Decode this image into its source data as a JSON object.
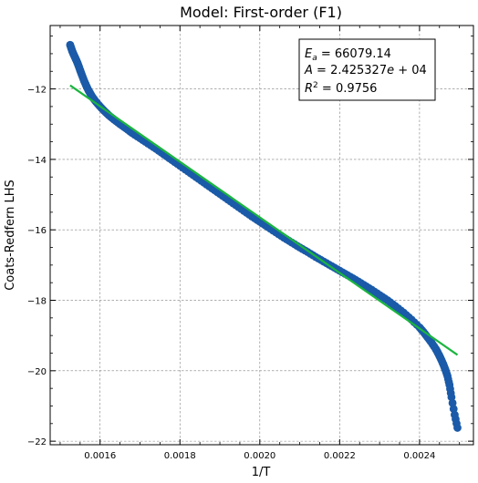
{
  "chart_data": {
    "type": "scatter",
    "title": "Model: First-order (F1)",
    "xlabel": "1/T",
    "ylabel": "Coats-Redfern LHS",
    "xlim": [
      0.001475,
      0.002535
    ],
    "ylim": [
      -22.1,
      -10.2
    ],
    "x_major_ticks": [
      0.0016,
      0.0018,
      0.002,
      0.0022,
      0.0024
    ],
    "x_tick_labels": [
      "0.0016",
      "0.0018",
      "0.0020",
      "0.0022",
      "0.0024"
    ],
    "y_major_ticks": [
      -22,
      -20,
      -18,
      -16,
      -14,
      -12
    ],
    "y_tick_labels": [
      "−22",
      "−20",
      "−18",
      "−16",
      "−14",
      "−12"
    ],
    "grid": true,
    "series": [
      {
        "kind": "scatter",
        "color": "#1a5aa8",
        "points": [
          [
            0.001525,
            -10.75
          ],
          [
            0.001528,
            -10.85
          ],
          [
            0.001531,
            -10.95
          ],
          [
            0.001535,
            -11.05
          ],
          [
            0.001539,
            -11.15
          ],
          [
            0.001543,
            -11.25
          ],
          [
            0.001547,
            -11.37
          ],
          [
            0.001551,
            -11.5
          ],
          [
            0.001555,
            -11.62
          ],
          [
            0.00156,
            -11.77
          ],
          [
            0.001565,
            -11.9
          ],
          [
            0.00157,
            -12.02
          ],
          [
            0.001575,
            -12.12
          ],
          [
            0.001582,
            -12.25
          ],
          [
            0.00159,
            -12.37
          ],
          [
            0.0016,
            -12.5
          ],
          [
            0.00161,
            -12.62
          ],
          [
            0.001622,
            -12.75
          ],
          [
            0.001635,
            -12.87
          ],
          [
            0.00165,
            -13.0
          ],
          [
            0.001665,
            -13.12
          ],
          [
            0.00168,
            -13.25
          ],
          [
            0.0017,
            -13.4
          ],
          [
            0.00172,
            -13.55
          ],
          [
            0.00174,
            -13.7
          ],
          [
            0.00176,
            -13.86
          ],
          [
            0.00178,
            -14.02
          ],
          [
            0.0018,
            -14.18
          ],
          [
            0.00182,
            -14.34
          ],
          [
            0.00184,
            -14.5
          ],
          [
            0.00186,
            -14.66
          ],
          [
            0.00188,
            -14.82
          ],
          [
            0.0019,
            -14.98
          ],
          [
            0.00192,
            -15.14
          ],
          [
            0.00194,
            -15.3
          ],
          [
            0.00196,
            -15.46
          ],
          [
            0.00198,
            -15.62
          ],
          [
            0.002,
            -15.77
          ],
          [
            0.00202,
            -15.92
          ],
          [
            0.00204,
            -16.07
          ],
          [
            0.00206,
            -16.22
          ],
          [
            0.00208,
            -16.36
          ],
          [
            0.0021,
            -16.5
          ],
          [
            0.00212,
            -16.63
          ],
          [
            0.00214,
            -16.77
          ],
          [
            0.00216,
            -16.9
          ],
          [
            0.00218,
            -17.03
          ],
          [
            0.0022,
            -17.16
          ],
          [
            0.00222,
            -17.29
          ],
          [
            0.00224,
            -17.42
          ],
          [
            0.00226,
            -17.56
          ],
          [
            0.00228,
            -17.7
          ],
          [
            0.0023,
            -17.85
          ],
          [
            0.00232,
            -18.0
          ],
          [
            0.00234,
            -18.17
          ],
          [
            0.00236,
            -18.35
          ],
          [
            0.00238,
            -18.55
          ],
          [
            0.0024,
            -18.77
          ],
          [
            0.00241,
            -18.9
          ],
          [
            0.00242,
            -19.05
          ],
          [
            0.00243,
            -19.2
          ],
          [
            0.00244,
            -19.37
          ],
          [
            0.002445,
            -19.47
          ],
          [
            0.00245,
            -19.58
          ],
          [
            0.002455,
            -19.7
          ],
          [
            0.00246,
            -19.83
          ],
          [
            0.002465,
            -19.98
          ],
          [
            0.00247,
            -20.15
          ],
          [
            0.002475,
            -20.4
          ],
          [
            0.00248,
            -20.75
          ],
          [
            0.002488,
            -21.25
          ],
          [
            0.002495,
            -21.62
          ]
        ]
      },
      {
        "kind": "line",
        "color": "#1bb53f",
        "points": [
          [
            0.001525,
            -11.9
          ],
          [
            0.002495,
            -19.55
          ]
        ]
      }
    ],
    "annotation": {
      "lines": [
        "E_a = 66079.14",
        "A = 2.425327e+04",
        "R^2 = 0.9756"
      ],
      "placement": "top-right"
    }
  }
}
